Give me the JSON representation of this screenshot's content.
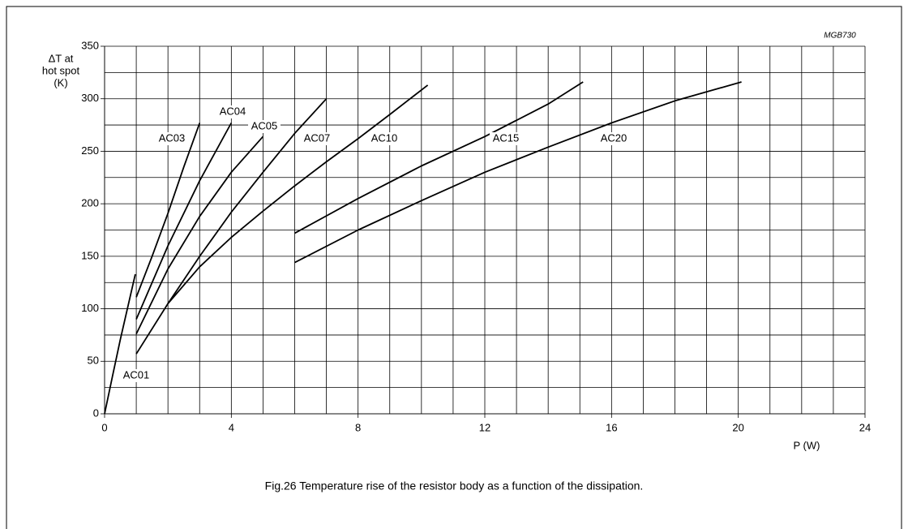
{
  "chart_data": {
    "type": "line",
    "code": "MGB730",
    "ylabel": [
      "ΔT at",
      "hot spot",
      "(K)"
    ],
    "xlabel": "P (W)",
    "caption": "Fig.26  Temperature rise of the resistor body as a function of the dissipation.",
    "xlim": [
      0,
      24
    ],
    "ylim": [
      0,
      350
    ],
    "xticks": [
      0,
      4,
      8,
      12,
      16,
      20,
      24
    ],
    "yticks": [
      0,
      50,
      100,
      150,
      200,
      250,
      300,
      350
    ],
    "xgrid": [
      0,
      1,
      2,
      3,
      4,
      5,
      6,
      7,
      8,
      9,
      10,
      11,
      12,
      13,
      14,
      15,
      16,
      17,
      18,
      19,
      20,
      21,
      22,
      23,
      24
    ],
    "ygrid": [
      0,
      25,
      50,
      75,
      100,
      125,
      150,
      175,
      200,
      225,
      250,
      275,
      300,
      325,
      350
    ],
    "grid": true,
    "series": [
      {
        "name": "AC01",
        "color": "#000000",
        "x": [
          0,
          0.25,
          0.5,
          0.75,
          0.97
        ],
        "values": [
          0,
          36,
          71,
          104,
          133
        ]
      },
      {
        "name": "AC03",
        "color": "#000000",
        "x": [
          1,
          1.5,
          2,
          2.5,
          3
        ],
        "values": [
          111,
          150,
          191,
          235,
          277
        ]
      },
      {
        "name": "AC04",
        "color": "#000000",
        "x": [
          1,
          2,
          3,
          4
        ],
        "values": [
          90,
          160,
          222,
          277
        ]
      },
      {
        "name": "AC05",
        "color": "#000000",
        "x": [
          1,
          2,
          3,
          4,
          5
        ],
        "values": [
          76,
          138,
          188,
          230,
          264
        ]
      },
      {
        "name": "AC07",
        "color": "#000000",
        "x": [
          2,
          3,
          4,
          5,
          6,
          7
        ],
        "values": [
          105,
          150,
          192,
          230,
          267,
          300
        ]
      },
      {
        "name": "AC10",
        "color": "#000000",
        "x": [
          1,
          2,
          3,
          4,
          5,
          6,
          7,
          8,
          9,
          10.2
        ],
        "values": [
          57,
          105,
          140,
          168,
          193,
          217,
          240,
          262,
          285,
          313
        ]
      },
      {
        "name": "AC15",
        "color": "#000000",
        "x": [
          6,
          8,
          10,
          12,
          14,
          15.1
        ],
        "values": [
          172,
          205,
          236,
          264,
          295,
          316
        ]
      },
      {
        "name": "AC20",
        "color": "#000000",
        "x": [
          6,
          8,
          10,
          12,
          14,
          16,
          18,
          20.1
        ],
        "values": [
          144,
          175,
          203,
          230,
          254,
          277,
          298,
          316
        ]
      }
    ]
  }
}
